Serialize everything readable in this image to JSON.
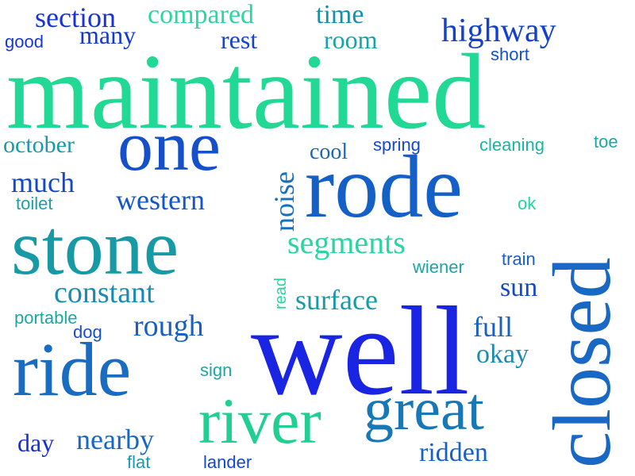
{
  "words": {
    "maintained": "maintained",
    "well": "well",
    "closed": "closed",
    "rode": "rode",
    "stone": "stone",
    "ride": "ride",
    "river": "river",
    "one": "one",
    "great": "great",
    "segments": "segments",
    "highway": "highway",
    "section": "section",
    "compared": "compared",
    "time": "time",
    "many": "many",
    "rest": "rest",
    "room": "room",
    "good": "good",
    "short": "short",
    "october": "october",
    "cool": "cool",
    "spring": "spring",
    "cleaning": "cleaning",
    "toe": "toe",
    "much": "much",
    "western": "western",
    "toilet": "toilet",
    "noise": "noise",
    "ok": "ok",
    "wiener": "wiener",
    "train": "train",
    "constant": "constant",
    "surface": "surface",
    "read": "read",
    "sun": "sun",
    "portable": "portable",
    "rough": "rough",
    "full": "full",
    "dog": "dog",
    "okay": "okay",
    "sign": "sign",
    "day": "day",
    "nearby": "nearby",
    "flat": "flat",
    "lander": "lander",
    "ridden": "ridden"
  },
  "colors": {
    "blue": "#1a2ee0",
    "mid_blue": "#1457c8",
    "teal_blue": "#1a7ab8",
    "teal": "#169aa8",
    "green": "#19d69a",
    "mint": "#2bd6a0"
  }
}
